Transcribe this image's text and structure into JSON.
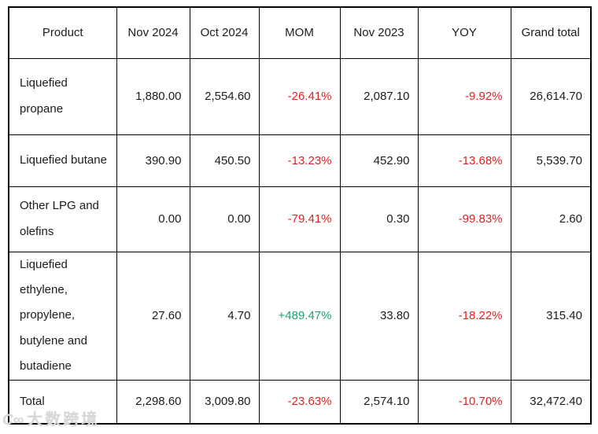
{
  "chart_data": {
    "type": "table",
    "columns": [
      "Product",
      "Nov 2024",
      "Oct 2024",
      "MOM",
      "Nov 2023",
      "YOY",
      "Grand total"
    ],
    "column_keys": [
      "product",
      "nov_2024",
      "oct_2024",
      "mom",
      "nov_2023",
      "yoy",
      "grand_total"
    ],
    "rows": [
      {
        "product": "Liquefied propane",
        "nov_2024": "1,880.00",
        "oct_2024": "2,554.60",
        "mom": "-26.41%",
        "nov_2023": "2,087.10",
        "yoy": "-9.92%",
        "grand_total": "26,614.70"
      },
      {
        "product": "Liquefied butane",
        "nov_2024": "390.90",
        "oct_2024": "450.50",
        "mom": "-13.23%",
        "nov_2023": "452.90",
        "yoy": "-13.68%",
        "grand_total": "5,539.70"
      },
      {
        "product": "Other LPG and olefins",
        "nov_2024": "0.00",
        "oct_2024": "0.00",
        "mom": "-79.41%",
        "nov_2023": "0.30",
        "yoy": "-99.83%",
        "grand_total": "2.60"
      },
      {
        "product": "Liquefied ethylene, propylene, butylene and butadiene",
        "nov_2024": "27.60",
        "oct_2024": "4.70",
        "mom": "+489.47%",
        "nov_2023": "33.80",
        "yoy": "-18.22%",
        "grand_total": "315.40"
      },
      {
        "product": "Total",
        "nov_2024": "2,298.60",
        "oct_2024": "3,009.80",
        "mom": "-23.63%",
        "nov_2023": "2,574.10",
        "yoy": "-10.70%",
        "grand_total": "32,472.40"
      }
    ]
  },
  "colors": {
    "negative": "#e02222",
    "positive": "#18a56d",
    "text": "#1c1c1c",
    "border": "#000000",
    "watermark": "#d7d7d7"
  },
  "watermark": {
    "logo": "C∞",
    "text": "大数跨境"
  }
}
